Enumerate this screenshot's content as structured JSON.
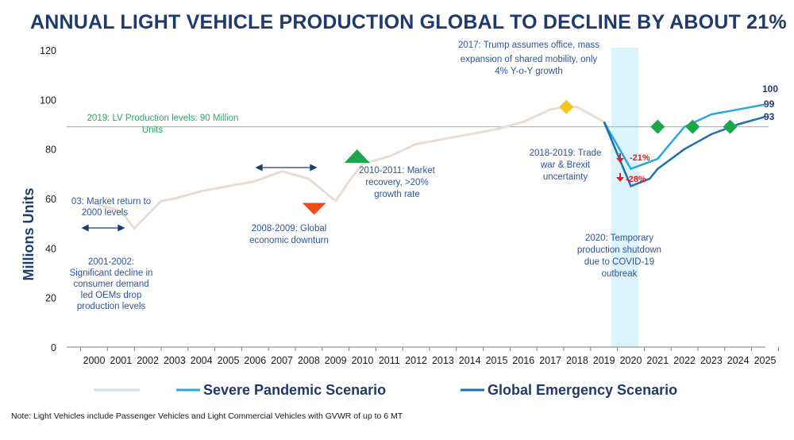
{
  "header": {
    "title": "ANNUAL LIGHT VEHICLE PRODUCTION GLOBAL TO DECLINE BY ABOUT 21%"
  },
  "footnote": "Note: Light Vehicles include Passenger Vehicles and Light Commercial Vehicles with GVWR of up to 6 MT",
  "colors": {
    "historical": "#e8ddd4",
    "severe": "#29a8e0",
    "emergency": "#1f6fae",
    "reference": "#70c8a0",
    "highlight": "#dcf3fb",
    "arrow": "#1f3b6e",
    "down_marker": "#f04a1a",
    "up_marker": "#1aa64a",
    "gold_marker": "#f5c518",
    "decline": "#e02020"
  },
  "chart_data": {
    "type": "line",
    "ylabel": "Millions Units",
    "ylim": [
      0,
      120
    ],
    "yticks": [
      0,
      20,
      40,
      60,
      80,
      100,
      120
    ],
    "categories": [
      "2000",
      "2001",
      "2002",
      "2003",
      "2004",
      "2005",
      "2006",
      "2007",
      "2008",
      "2009",
      "2010",
      "2011",
      "2012",
      "2013",
      "2014",
      "2015",
      "2016",
      "2017",
      "2018",
      "2019",
      "2020",
      "2021",
      "2022",
      "2023",
      "2024",
      "2025"
    ],
    "series": [
      {
        "key": "historical",
        "x": [
          2000,
          2001,
          2001.5,
          2002.5,
          2003,
          2004,
          2005,
          2006,
          2007,
          2008,
          2009,
          2009.5,
          2010,
          2011,
          2012,
          2013,
          2014,
          2015,
          2016,
          2017,
          2017.5,
          2018,
          2019
        ],
        "y": [
          58,
          55,
          48,
          59,
          60,
          63,
          65,
          67,
          71,
          68,
          59,
          67,
          74,
          77,
          82,
          84,
          86,
          88,
          91,
          96,
          97,
          97,
          91
        ]
      },
      {
        "key": "severe",
        "name": "Severe Pandemic Scenario",
        "x": [
          2019,
          2020,
          2021,
          2021.3,
          2022,
          2023,
          2024,
          2025
        ],
        "y": [
          91,
          72,
          76,
          80,
          89,
          94,
          96,
          98
        ]
      },
      {
        "key": "emergency",
        "name": "Global Emergency Scenario",
        "x": [
          2019,
          2020,
          2020.7,
          2021,
          2022,
          2023,
          2024,
          2025
        ],
        "y": [
          91,
          65,
          68,
          72,
          80,
          86,
          90,
          93
        ]
      }
    ],
    "reference_line": {
      "value": 89,
      "label": "2019: LV Production levels: 90 Million Units"
    },
    "end_labels": [
      "100",
      "99",
      "93"
    ],
    "decline_labels": [
      "-21%",
      "-28%"
    ],
    "markers": [
      {
        "shape": "down",
        "x": 2008.2,
        "y": 56,
        "color_key": "down_marker"
      },
      {
        "shape": "up",
        "x": 2009.8,
        "y": 77,
        "color_key": "up_marker"
      },
      {
        "shape": "diamond",
        "x": 2017.6,
        "y": 97,
        "color_key": "gold_marker"
      },
      {
        "shape": "diamond",
        "x": 2021,
        "y": 89,
        "color_key": "up_marker"
      },
      {
        "shape": "diamond",
        "x": 2022.3,
        "y": 89,
        "color_key": "up_marker"
      },
      {
        "shape": "diamond",
        "x": 2023.7,
        "y": 89,
        "color_key": "up_marker"
      }
    ],
    "annotations": [
      "03: Market return to 2000 levels",
      "2001-2002: Significant decline in consumer demand led OEMs drop production levels",
      "2008-2009: Global economic downturn",
      "2010-2011: Market recovery, >20% growth rate",
      "2017: Trump assumes office, mass expansion of shared mobility, only 4% Y-o-Y growth",
      "2018-2019: Trade war & Brexit uncertainty",
      "2020: Temporary production shutdown due to COVID-19 outbreak"
    ],
    "legend": {
      "position": "bottom",
      "entries": [
        "",
        "Severe Pandemic Scenario",
        "Global Emergency Scenario"
      ]
    }
  }
}
